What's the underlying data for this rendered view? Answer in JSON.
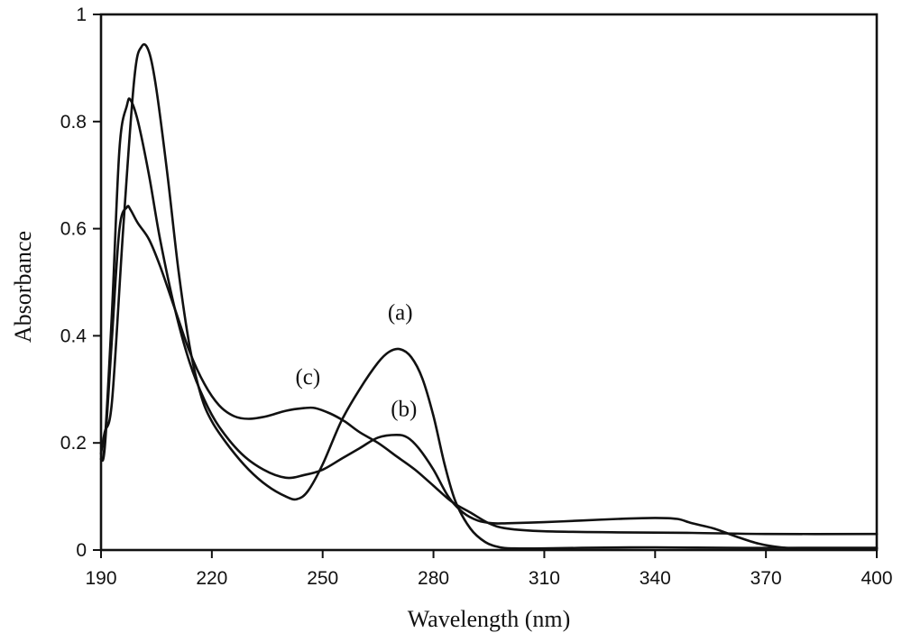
{
  "chart_data": {
    "type": "line",
    "title": "",
    "xlabel": "Wavelength (nm)",
    "ylabel": "Absorbance",
    "xlim": [
      190,
      400
    ],
    "ylim": [
      0,
      1
    ],
    "x_ticks": [
      "190",
      "220",
      "250",
      "280",
      "310",
      "340",
      "370",
      "400"
    ],
    "y_ticks": [
      "0",
      "0.2",
      "0.4",
      "0.6",
      "0.8",
      "1"
    ],
    "grid": false,
    "legend": "none",
    "annotations": [
      {
        "text": "(a)",
        "x": 271,
        "y": 0.43
      },
      {
        "text": "(b)",
        "x": 272,
        "y": 0.25
      },
      {
        "text": "(c)",
        "x": 246,
        "y": 0.31
      }
    ],
    "series": [
      {
        "label": "(a)",
        "x": [
          190,
          191,
          193,
          196,
          199,
          201,
          203,
          205,
          208,
          211,
          214,
          217,
          220,
          225,
          230,
          235,
          240,
          243,
          246,
          250,
          255,
          260,
          265,
          268,
          271,
          274,
          277,
          280,
          283,
          286,
          290,
          294,
          298,
          302,
          310,
          320,
          340,
          360,
          380,
          400
        ],
        "y": [
          0.18,
          0.22,
          0.28,
          0.6,
          0.88,
          0.94,
          0.93,
          0.86,
          0.7,
          0.52,
          0.38,
          0.29,
          0.24,
          0.19,
          0.15,
          0.12,
          0.1,
          0.095,
          0.11,
          0.16,
          0.24,
          0.3,
          0.35,
          0.37,
          0.375,
          0.36,
          0.32,
          0.25,
          0.16,
          0.09,
          0.04,
          0.015,
          0.005,
          0.003,
          0.003,
          0.004,
          0.005,
          0.004,
          0.004,
          0.004
        ]
      },
      {
        "label": "(b)",
        "x": [
          190,
          191,
          193,
          195,
          197,
          198,
          200,
          203,
          206,
          210,
          214,
          218,
          222,
          228,
          234,
          240,
          245,
          250,
          255,
          260,
          265,
          270,
          273,
          276,
          280,
          284,
          288,
          292,
          296,
          300,
          310,
          320,
          330,
          340,
          346,
          350,
          356,
          362,
          368,
          374,
          380,
          400
        ],
        "y": [
          0.17,
          0.2,
          0.45,
          0.75,
          0.83,
          0.84,
          0.8,
          0.7,
          0.58,
          0.45,
          0.35,
          0.28,
          0.23,
          0.18,
          0.15,
          0.135,
          0.14,
          0.15,
          0.17,
          0.19,
          0.21,
          0.215,
          0.21,
          0.19,
          0.15,
          0.1,
          0.07,
          0.055,
          0.05,
          0.05,
          0.052,
          0.055,
          0.058,
          0.06,
          0.058,
          0.05,
          0.04,
          0.025,
          0.012,
          0.005,
          0.003,
          0.003
        ]
      },
      {
        "label": "(c)",
        "x": [
          190,
          191,
          193,
          195,
          197,
          198,
          200,
          203,
          206,
          210,
          214,
          218,
          222,
          226,
          230,
          235,
          240,
          245,
          248,
          252,
          256,
          260,
          265,
          270,
          275,
          280,
          285,
          290,
          295,
          300,
          310,
          330,
          350,
          370,
          400
        ],
        "y": [
          0.17,
          0.19,
          0.4,
          0.6,
          0.64,
          0.635,
          0.61,
          0.58,
          0.53,
          0.45,
          0.37,
          0.31,
          0.27,
          0.25,
          0.245,
          0.25,
          0.26,
          0.265,
          0.265,
          0.255,
          0.24,
          0.22,
          0.2,
          0.175,
          0.15,
          0.12,
          0.09,
          0.07,
          0.05,
          0.04,
          0.035,
          0.033,
          0.032,
          0.03,
          0.03
        ]
      }
    ]
  }
}
